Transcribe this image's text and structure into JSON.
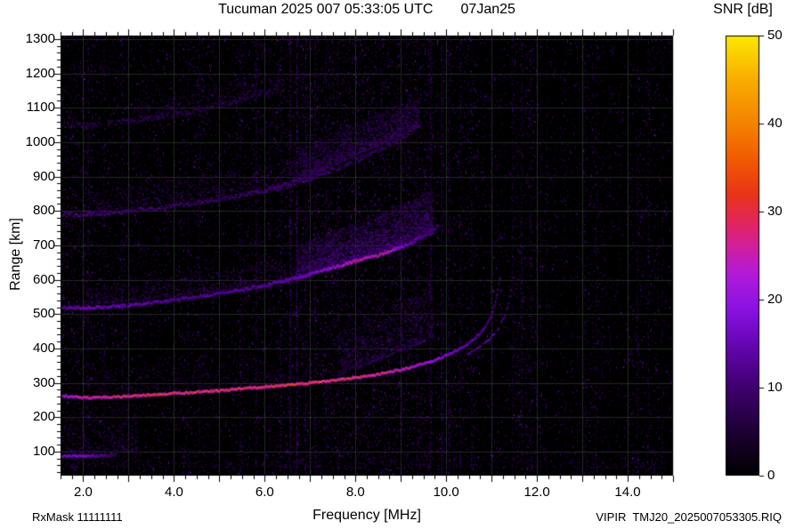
{
  "chart_data": {
    "type": "heatmap",
    "title": "Tucuman 2025 007 05:33:05 UTC       07Jan25",
    "xlabel": "Frequency [MHz]",
    "ylabel": "Range [km]",
    "xlim": [
      1.5,
      15.0
    ],
    "ylim": [
      30,
      1310
    ],
    "grid": true,
    "background": "#000000",
    "xticks": {
      "values": [
        2,
        4,
        6,
        8,
        10,
        12,
        14
      ],
      "labels": [
        "2.0",
        "4.0",
        "6.0",
        "8.0",
        "10.0",
        "12.0",
        "14.0"
      ]
    },
    "yticks": {
      "values": [
        100,
        200,
        300,
        400,
        500,
        600,
        700,
        800,
        900,
        1000,
        1100,
        1200,
        1300
      ],
      "labels": [
        "100",
        "200",
        "300",
        "400",
        "500",
        "600",
        "700",
        "800",
        "900",
        "1000",
        "1100",
        "1200",
        "1300"
      ]
    },
    "colorbar": {
      "title": "SNR [dB]",
      "min": 0,
      "max": 50,
      "ticks": {
        "values": [
          0,
          10,
          20,
          30,
          40,
          50
        ],
        "labels": [
          "0",
          "10",
          "20",
          "30",
          "40",
          "50"
        ]
      },
      "stops": [
        [
          0,
          "#000000"
        ],
        [
          0.1,
          "#1c0033"
        ],
        [
          0.2,
          "#3f006e"
        ],
        [
          0.3,
          "#6606b4"
        ],
        [
          0.38,
          "#8b12e2"
        ],
        [
          0.46,
          "#b31ad8"
        ],
        [
          0.52,
          "#d01f9e"
        ],
        [
          0.58,
          "#e22658"
        ],
        [
          0.64,
          "#ea3418"
        ],
        [
          0.72,
          "#f05c00"
        ],
        [
          0.8,
          "#f58200"
        ],
        [
          0.9,
          "#f9ad00"
        ],
        [
          1,
          "#fce800"
        ]
      ]
    },
    "annotations": {
      "rxmask": "RxMask 11111111",
      "filename": "VIPIR  TMJ20_2025007053305.RIQ"
    },
    "noise": {
      "base": 14,
      "snr_max": 16,
      "bands": [
        [
          1.5,
          2.2,
          2.2
        ],
        [
          2.2,
          3.2,
          1.6
        ],
        [
          3.2,
          4.1,
          1.0
        ],
        [
          4.1,
          4.9,
          1.5
        ],
        [
          4.9,
          5.3,
          0.9
        ],
        [
          5.3,
          6.2,
          1.5
        ],
        [
          6.2,
          7.4,
          2.0
        ],
        [
          7.4,
          9.7,
          2.6
        ],
        [
          9.7,
          10.7,
          1.8
        ],
        [
          10.7,
          11.4,
          1.0
        ],
        [
          11.4,
          12.1,
          1.8
        ],
        [
          12.1,
          13.0,
          0.8
        ],
        [
          13.0,
          13.5,
          1.4
        ],
        [
          13.5,
          14.0,
          0.7
        ],
        [
          14.0,
          14.7,
          1.4
        ],
        [
          14.7,
          15.0,
          0.8
        ]
      ]
    },
    "rfi_stripes": [
      [
        2.1,
        0.5,
        12
      ],
      [
        2.45,
        0.3,
        10
      ],
      [
        2.85,
        0.4,
        11
      ],
      [
        3.25,
        0.25,
        10
      ],
      [
        3.65,
        0.2,
        9
      ],
      [
        4.3,
        0.3,
        10
      ],
      [
        4.55,
        0.35,
        11
      ],
      [
        5.0,
        0.2,
        9
      ],
      [
        5.45,
        0.4,
        11
      ],
      [
        5.8,
        0.5,
        12
      ],
      [
        6.1,
        0.3,
        10
      ],
      [
        6.35,
        0.4,
        11
      ],
      [
        6.55,
        0.8,
        14
      ],
      [
        6.7,
        0.9,
        14
      ],
      [
        6.9,
        0.6,
        12
      ],
      [
        7.1,
        0.5,
        12
      ],
      [
        7.35,
        0.4,
        11
      ],
      [
        7.6,
        0.4,
        11
      ],
      [
        9.0,
        0.4,
        11
      ],
      [
        9.35,
        0.4,
        11
      ],
      [
        9.65,
        0.7,
        13
      ],
      [
        9.9,
        0.6,
        12
      ],
      [
        10.05,
        0.5,
        12
      ],
      [
        10.3,
        0.4,
        11
      ],
      [
        10.55,
        0.4,
        11
      ],
      [
        11.0,
        0.3,
        10
      ],
      [
        11.45,
        0.3,
        10
      ],
      [
        11.65,
        0.5,
        12
      ],
      [
        11.85,
        0.4,
        11
      ],
      [
        12.2,
        0.25,
        9
      ],
      [
        12.6,
        0.2,
        9
      ],
      [
        13.05,
        0.35,
        10
      ],
      [
        13.3,
        0.3,
        10
      ],
      [
        13.6,
        0.2,
        9
      ],
      [
        14.2,
        0.35,
        10
      ],
      [
        14.45,
        0.3,
        10
      ],
      [
        14.75,
        0.25,
        9
      ]
    ],
    "clouds": [
      {
        "f": [
          6.7,
          9.7
        ],
        "base": [
          600,
          735
        ],
        "top": [
          700,
          860
        ],
        "n": 2600,
        "snr": [
          6,
          15
        ]
      },
      {
        "f": [
          6.6,
          9.4
        ],
        "base": [
          880,
          1045
        ],
        "top": [
          985,
          1130
        ],
        "n": 1500,
        "snr": [
          5,
          13
        ]
      },
      {
        "f": [
          7.6,
          9.7
        ],
        "base": [
          320,
          430
        ],
        "top": [
          440,
          580
        ],
        "n": 800,
        "snr": [
          5,
          12
        ]
      },
      {
        "f": [
          2.0,
          6.7
        ],
        "base": [
          525,
          595
        ],
        "top": [
          575,
          665
        ],
        "n": 600,
        "snr": [
          5,
          12
        ]
      },
      {
        "f": [
          2.0,
          6.6
        ],
        "base": [
          795,
          868
        ],
        "top": [
          852,
          950
        ],
        "n": 520,
        "snr": [
          5,
          12
        ]
      },
      {
        "f": [
          3.2,
          6.4
        ],
        "base": [
          1060,
          1150
        ],
        "top": [
          1125,
          1240
        ],
        "n": 380,
        "snr": [
          4,
          11
        ]
      },
      {
        "f": [
          1.6,
          3.2
        ],
        "base": [
          95,
          105
        ],
        "top": [
          245,
          255
        ],
        "n": 300,
        "snr": [
          4,
          11
        ]
      },
      {
        "f": [
          2.2,
          7.2
        ],
        "base": [
          270,
          300
        ],
        "top": [
          330,
          380
        ],
        "n": 350,
        "snr": [
          4,
          10
        ]
      },
      {
        "f": [
          1.6,
          14.8
        ],
        "base": [
          55,
          55
        ],
        "top": [
          110,
          110
        ],
        "n": 500,
        "snr": [
          4,
          10
        ]
      }
    ],
    "traces": [
      {
        "name": "E-layer",
        "points": [
          [
            1.5,
            88
          ],
          [
            2.0,
            88
          ],
          [
            2.4,
            90
          ],
          [
            2.75,
            92
          ]
        ],
        "snr": [
          [
            1.5,
            18
          ],
          [
            2.0,
            20
          ],
          [
            2.3,
            15
          ],
          [
            2.75,
            9
          ]
        ],
        "thickness": 3,
        "jitter": 1,
        "gap": 0
      },
      {
        "name": "F-trace-O-mode",
        "points": [
          [
            1.55,
            263
          ],
          [
            2,
            258
          ],
          [
            2.5,
            259
          ],
          [
            3,
            262
          ],
          [
            3.5,
            266
          ],
          [
            4,
            270
          ],
          [
            4.5,
            274
          ],
          [
            5,
            279
          ],
          [
            5.5,
            284
          ],
          [
            6,
            289
          ],
          [
            6.5,
            295
          ],
          [
            7,
            301
          ],
          [
            7.5,
            308
          ],
          [
            8,
            316
          ],
          [
            8.5,
            326
          ],
          [
            9,
            339
          ],
          [
            9.5,
            356
          ],
          [
            9.8,
            369
          ],
          [
            10.1,
            386
          ],
          [
            10.4,
            407
          ],
          [
            10.6,
            426
          ],
          [
            10.8,
            452
          ],
          [
            10.95,
            483
          ],
          [
            11.05,
            518
          ],
          [
            11.12,
            556
          ],
          [
            11.17,
            592
          ],
          [
            11.2,
            615
          ]
        ],
        "snr": [
          [
            1.55,
            24
          ],
          [
            2,
            31
          ],
          [
            3,
            34
          ],
          [
            5,
            35
          ],
          [
            7,
            36
          ],
          [
            8.5,
            33
          ],
          [
            9,
            29
          ],
          [
            9.5,
            25
          ],
          [
            10,
            21
          ],
          [
            10.5,
            17
          ],
          [
            11,
            14
          ],
          [
            11.2,
            12
          ]
        ],
        "thickness": 3,
        "jitter": 1,
        "gap": 0
      },
      {
        "name": "F-trace-X-mode",
        "points": [
          [
            10.45,
            382
          ],
          [
            10.7,
            401
          ],
          [
            10.95,
            426
          ],
          [
            11.15,
            457
          ],
          [
            11.3,
            497
          ],
          [
            11.4,
            543
          ],
          [
            11.45,
            588
          ],
          [
            11.48,
            612
          ]
        ],
        "snr": [
          [
            10.45,
            13
          ],
          [
            11.0,
            16
          ],
          [
            11.48,
            12
          ]
        ],
        "thickness": 2,
        "jitter": 1,
        "gap": 0.3
      },
      {
        "name": "2F-multiple",
        "points": [
          [
            1.55,
            521
          ],
          [
            2,
            518
          ],
          [
            2.5,
            522
          ],
          [
            3,
            527
          ],
          [
            3.5,
            534
          ],
          [
            4,
            542
          ],
          [
            4.5,
            551
          ],
          [
            5,
            561
          ],
          [
            5.5,
            572
          ],
          [
            6,
            585
          ],
          [
            6.5,
            600
          ],
          [
            7,
            617
          ],
          [
            7.5,
            636
          ],
          [
            8,
            655
          ],
          [
            8.5,
            672
          ],
          [
            9,
            695
          ],
          [
            9.3,
            712
          ],
          [
            9.6,
            735
          ],
          [
            9.85,
            762
          ]
        ],
        "snr": [
          [
            1.55,
            15
          ],
          [
            2,
            19
          ],
          [
            3,
            17
          ],
          [
            4,
            15
          ],
          [
            5,
            15
          ],
          [
            6,
            16
          ],
          [
            7,
            19
          ],
          [
            7.6,
            25
          ],
          [
            8,
            29
          ],
          [
            8.7,
            28
          ],
          [
            9,
            21
          ],
          [
            9.4,
            15
          ],
          [
            9.85,
            11
          ]
        ],
        "thickness": 3,
        "jitter": 1.5,
        "gap": 0.05
      },
      {
        "name": "3F-multiple",
        "points": [
          [
            1.55,
            790
          ],
          [
            2,
            790
          ],
          [
            2.5,
            794
          ],
          [
            3,
            800
          ],
          [
            3.5,
            807
          ],
          [
            4,
            815
          ],
          [
            4.5,
            824
          ],
          [
            5,
            834
          ],
          [
            5.5,
            846
          ],
          [
            6,
            860
          ],
          [
            6.5,
            876
          ],
          [
            7,
            895
          ],
          [
            7.5,
            918
          ],
          [
            8,
            945
          ],
          [
            8.5,
            975
          ],
          [
            9,
            1008
          ],
          [
            9.3,
            1032
          ]
        ],
        "snr": [
          [
            1.55,
            12
          ],
          [
            2,
            15
          ],
          [
            3,
            13
          ],
          [
            4,
            12
          ],
          [
            5,
            12
          ],
          [
            6,
            13
          ],
          [
            7,
            12
          ],
          [
            8,
            11
          ],
          [
            9,
            10
          ],
          [
            9.3,
            8
          ]
        ],
        "thickness": 2,
        "jitter": 2.5,
        "gap": 0.15
      },
      {
        "name": "4F-multiple",
        "points": [
          [
            1.7,
            1048
          ],
          [
            2,
            1050
          ],
          [
            2.5,
            1055
          ],
          [
            3,
            1062
          ],
          [
            3.5,
            1070
          ],
          [
            4,
            1080
          ],
          [
            4.5,
            1092
          ],
          [
            5,
            1106
          ],
          [
            5.5,
            1124
          ],
          [
            6,
            1145
          ],
          [
            6.3,
            1160
          ]
        ],
        "snr": [
          [
            1.7,
            9
          ],
          [
            2.5,
            10
          ],
          [
            4,
            9
          ],
          [
            5,
            9
          ],
          [
            6.3,
            8
          ]
        ],
        "thickness": 2,
        "jitter": 2.5,
        "gap": 0.45
      }
    ]
  }
}
